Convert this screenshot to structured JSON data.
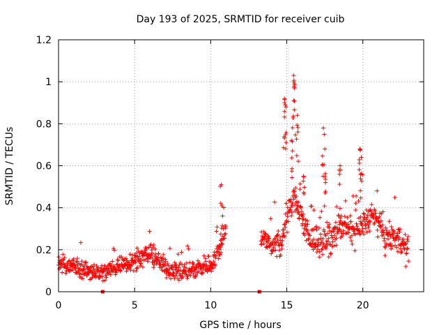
{
  "chart_data": {
    "type": "scatter",
    "title": "Day 193 of 2025, SRMTID for receiver cuib",
    "xlabel": "GPS time / hours",
    "ylabel": "SRMTID / TECUs",
    "xlim": [
      0,
      24
    ],
    "ylim": [
      0,
      1.2
    ],
    "xticks": [
      0,
      5,
      10,
      15,
      20
    ],
    "xtick_labels": [
      "0",
      "5",
      "10",
      "15",
      "20"
    ],
    "yticks": [
      0,
      0.2,
      0.4,
      0.6,
      0.8,
      1,
      1.2
    ],
    "ytick_labels": [
      "0",
      "0.2",
      "0.4",
      "0.6",
      "0.8",
      "1",
      "1.2"
    ],
    "grid": true,
    "series": [
      {
        "name": "SRMTID",
        "marker": "plus",
        "color": "#ff0000",
        "segments": [
          {
            "start": 0.0,
            "end": 11.0,
            "step": 0.02,
            "base": [
              [
                0,
                0.14
              ],
              [
                1,
                0.12
              ],
              [
                2,
                0.1
              ],
              [
                3,
                0.09
              ],
              [
                4,
                0.13
              ],
              [
                5,
                0.15
              ],
              [
                6,
                0.18
              ],
              [
                7,
                0.12
              ],
              [
                8,
                0.09
              ],
              [
                9,
                0.11
              ],
              [
                10,
                0.13
              ],
              [
                10.6,
                0.2
              ],
              [
                11.0,
                0.32
              ]
            ],
            "spread": 0.05
          },
          {
            "start": 13.3,
            "end": 23.0,
            "step": 0.02,
            "base": [
              [
                13.3,
                0.25
              ],
              [
                14,
                0.23
              ],
              [
                14.6,
                0.22
              ],
              [
                15,
                0.35
              ],
              [
                15.5,
                0.45
              ],
              [
                16,
                0.35
              ],
              [
                16.5,
                0.24
              ],
              [
                17,
                0.25
              ],
              [
                17.5,
                0.23
              ],
              [
                18,
                0.25
              ],
              [
                18.5,
                0.32
              ],
              [
                19,
                0.3
              ],
              [
                19.5,
                0.28
              ],
              [
                20,
                0.32
              ],
              [
                20.5,
                0.36
              ],
              [
                21,
                0.33
              ],
              [
                21.5,
                0.25
              ],
              [
                22,
                0.26
              ],
              [
                22.5,
                0.24
              ],
              [
                23,
                0.18
              ]
            ],
            "spread": 0.07
          }
        ],
        "peaks": [
          {
            "x": 14.85,
            "y": 0.92
          },
          {
            "x": 15.45,
            "y": 1.03
          },
          {
            "x": 15.5,
            "y": 0.99
          },
          {
            "x": 15.7,
            "y": 0.84
          },
          {
            "x": 17.4,
            "y": 0.78
          },
          {
            "x": 17.5,
            "y": 0.68
          },
          {
            "x": 18.5,
            "y": 0.6
          },
          {
            "x": 19.8,
            "y": 0.68
          },
          {
            "x": 19.9,
            "y": 0.64
          },
          {
            "x": 10.7,
            "y": 0.51
          },
          {
            "x": 14.9,
            "y": 0.89
          },
          {
            "x": 15.3,
            "y": 0.72
          },
          {
            "x": 16.1,
            "y": 0.55
          }
        ],
        "zero_points": [
          {
            "x": 2.9,
            "y": 0.0
          },
          {
            "x": 13.2,
            "y": 0.0
          }
        ]
      }
    ]
  }
}
